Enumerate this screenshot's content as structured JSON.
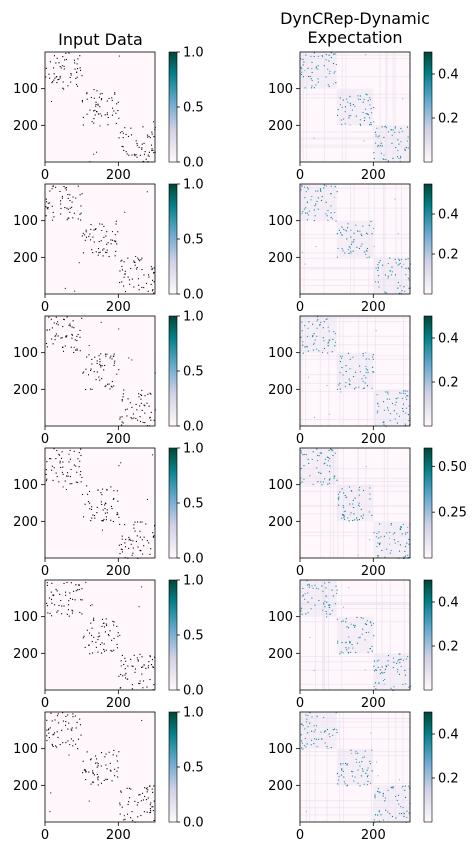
{
  "columns": [
    {
      "title": "Input Data"
    },
    {
      "title": "DynCRep-Dynamic\nExpectation"
    }
  ],
  "chart_data": [
    {
      "type": "heatmap",
      "column": "Input Data",
      "row": 1,
      "xticks": [
        "0",
        "200"
      ],
      "yticks": [
        "100",
        "200"
      ],
      "colorbar_ticks": [
        "1.0",
        "0.5",
        "0.0"
      ],
      "colorbar_range": [
        0,
        1.0
      ],
      "axis_range": [
        0,
        300
      ]
    },
    {
      "type": "heatmap",
      "column": "DynCRep-Dynamic Expectation",
      "row": 1,
      "xticks": [
        "0",
        "200"
      ],
      "yticks": [
        "100",
        "200"
      ],
      "colorbar_ticks": [
        "0.4",
        "0.2"
      ],
      "colorbar_range": [
        0,
        0.5
      ],
      "axis_range": [
        0,
        300
      ]
    },
    {
      "type": "heatmap",
      "column": "Input Data",
      "row": 2,
      "xticks": [
        "0",
        "200"
      ],
      "yticks": [
        "100",
        "200"
      ],
      "colorbar_ticks": [
        "1.0",
        "0.5",
        "0.0"
      ],
      "colorbar_range": [
        0,
        1.0
      ],
      "axis_range": [
        0,
        300
      ]
    },
    {
      "type": "heatmap",
      "column": "DynCRep-Dynamic Expectation",
      "row": 2,
      "xticks": [
        "0",
        "200"
      ],
      "yticks": [
        "100",
        "200"
      ],
      "colorbar_ticks": [
        "0.4",
        "0.2"
      ],
      "colorbar_range": [
        0,
        0.55
      ],
      "axis_range": [
        0,
        300
      ]
    },
    {
      "type": "heatmap",
      "column": "Input Data",
      "row": 3,
      "xticks": [
        "0",
        "200"
      ],
      "yticks": [
        "100",
        "200"
      ],
      "colorbar_ticks": [
        "1.0",
        "0.5",
        "0.0"
      ],
      "colorbar_range": [
        0,
        1.0
      ],
      "axis_range": [
        0,
        300
      ]
    },
    {
      "type": "heatmap",
      "column": "DynCRep-Dynamic Expectation",
      "row": 3,
      "xticks": [
        "0",
        "200"
      ],
      "yticks": [
        "100",
        "200"
      ],
      "colorbar_ticks": [
        "0.4",
        "0.2"
      ],
      "colorbar_range": [
        0,
        0.5
      ],
      "axis_range": [
        0,
        300
      ]
    },
    {
      "type": "heatmap",
      "column": "Input Data",
      "row": 4,
      "xticks": [
        "0",
        "200"
      ],
      "yticks": [
        "100",
        "200"
      ],
      "colorbar_ticks": [
        "1.0",
        "0.5",
        "0.0"
      ],
      "colorbar_range": [
        0,
        1.0
      ],
      "axis_range": [
        0,
        300
      ]
    },
    {
      "type": "heatmap",
      "column": "DynCRep-Dynamic Expectation",
      "row": 4,
      "xticks": [
        "0",
        "200"
      ],
      "yticks": [
        "100",
        "200"
      ],
      "colorbar_ticks": [
        "0.50",
        "0.25"
      ],
      "colorbar_range": [
        0,
        0.6
      ],
      "axis_range": [
        0,
        300
      ]
    },
    {
      "type": "heatmap",
      "column": "Input Data",
      "row": 5,
      "xticks": [
        "0",
        "200"
      ],
      "yticks": [
        "100",
        "200"
      ],
      "colorbar_ticks": [
        "1.0",
        "0.5",
        "0.0"
      ],
      "colorbar_range": [
        0,
        1.0
      ],
      "axis_range": [
        0,
        300
      ]
    },
    {
      "type": "heatmap",
      "column": "DynCRep-Dynamic Expectation",
      "row": 5,
      "xticks": [
        "0",
        "200"
      ],
      "yticks": [
        "100",
        "200"
      ],
      "colorbar_ticks": [
        "0.4",
        "0.2"
      ],
      "colorbar_range": [
        0,
        0.5
      ],
      "axis_range": [
        0,
        300
      ]
    },
    {
      "type": "heatmap",
      "column": "Input Data",
      "row": 6,
      "xticks": [
        "0",
        "200"
      ],
      "yticks": [
        "100",
        "200"
      ],
      "colorbar_ticks": [
        "1.0",
        "0.5",
        "0.0"
      ],
      "colorbar_range": [
        0,
        1.0
      ],
      "axis_range": [
        0,
        300
      ]
    },
    {
      "type": "heatmap",
      "column": "DynCRep-Dynamic Expectation",
      "row": 6,
      "xticks": [
        "0",
        "200"
      ],
      "yticks": [
        "100",
        "200"
      ],
      "colorbar_ticks": [
        "0.4",
        "0.2"
      ],
      "colorbar_range": [
        0,
        0.5
      ],
      "axis_range": [
        0,
        300
      ]
    }
  ],
  "colors": {
    "cmap_low": "#fff7fb",
    "cmap_mid": "#67a9cf",
    "cmap_high": "#014636",
    "dot": "#000000"
  }
}
